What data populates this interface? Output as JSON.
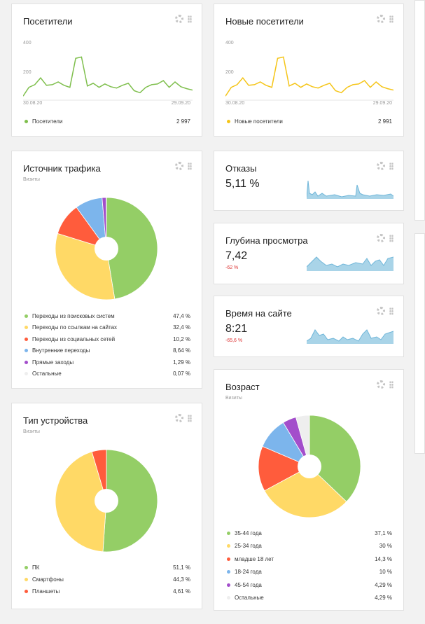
{
  "visitors": {
    "title": "Посетители",
    "y_ticks": [
      "400",
      "200"
    ],
    "date_start": "30.08.20",
    "date_end": "29.09.20",
    "legend_label": "Посетители",
    "legend_value": "2 997",
    "color": "#7fbf4d"
  },
  "new_visitors": {
    "title": "Новые посетители",
    "y_ticks": [
      "400",
      "200"
    ],
    "date_start": "30.08.20",
    "date_end": "29.09.20",
    "legend_label": "Новые посетители",
    "legend_value": "2 991",
    "color": "#f5c518"
  },
  "traffic_source": {
    "title": "Источник трафика",
    "subtitle": "Визиты",
    "items": [
      {
        "label": "Переходы из поисковых систем",
        "value": "47,4 %",
        "color": "#94ce66"
      },
      {
        "label": "Переходы по ссылкам на сайтах",
        "value": "32,4 %",
        "color": "#ffd966"
      },
      {
        "label": "Переходы из социальных сетей",
        "value": "10,2 %",
        "color": "#ff5c3c"
      },
      {
        "label": "Внутренние переходы",
        "value": "8,64 %",
        "color": "#7cb5ec"
      },
      {
        "label": "Прямые заходы",
        "value": "1,29 %",
        "color": "#a34ecb"
      },
      {
        "label": "Остальные",
        "value": "0,07 %",
        "color": "#eeeeee"
      }
    ]
  },
  "device_type": {
    "title": "Тип устройства",
    "subtitle": "Визиты",
    "items": [
      {
        "label": "ПК",
        "value": "51,1 %",
        "color": "#94ce66"
      },
      {
        "label": "Смартфоны",
        "value": "44,3 %",
        "color": "#ffd966"
      },
      {
        "label": "Планшеты",
        "value": "4,61 %",
        "color": "#ff5c3c"
      }
    ]
  },
  "bounces": {
    "title": "Отказы",
    "value": "5,11 %"
  },
  "depth": {
    "title": "Глубина просмотра",
    "value": "7,42",
    "delta": "-62 %"
  },
  "time_on_site": {
    "title": "Время на сайте",
    "value": "8:21",
    "delta": "-65,6 %"
  },
  "age": {
    "title": "Возраст",
    "subtitle": "Визиты",
    "items": [
      {
        "label": "35-44 года",
        "value": "37,1 %",
        "color": "#94ce66"
      },
      {
        "label": "25-34 года",
        "value": "30 %",
        "color": "#ffd966"
      },
      {
        "label": "младше 18 лет",
        "value": "14,3 %",
        "color": "#ff5c3c"
      },
      {
        "label": "18-24 года",
        "value": "10 %",
        "color": "#7cb5ec"
      },
      {
        "label": "45-54 года",
        "value": "4,29 %",
        "color": "#a34ecb"
      },
      {
        "label": "Остальные",
        "value": "4,29 %",
        "color": "#eeeeee"
      }
    ]
  },
  "chart_data": [
    {
      "type": "line",
      "title": "Посетители",
      "x_start": "30.08.20",
      "x_end": "29.09.20",
      "ylim": [
        0,
        400
      ],
      "series": [
        {
          "name": "Посетители",
          "values": [
            30,
            95,
            115,
            165,
            110,
            115,
            135,
            110,
            95,
            310,
            320,
            105,
            125,
            95,
            120,
            100,
            90,
            110,
            125,
            70,
            55,
            95,
            115,
            120,
            145,
            95,
            135,
            100,
            85,
            75
          ]
        }
      ]
    },
    {
      "type": "line",
      "title": "Новые посетители",
      "x_start": "30.08.20",
      "x_end": "29.09.20",
      "ylim": [
        0,
        400
      ],
      "series": [
        {
          "name": "Новые посетители",
          "values": [
            30,
            95,
            115,
            165,
            110,
            115,
            135,
            110,
            95,
            310,
            320,
            105,
            125,
            95,
            120,
            100,
            90,
            110,
            125,
            70,
            55,
            95,
            115,
            120,
            145,
            95,
            135,
            100,
            85,
            75
          ]
        }
      ]
    },
    {
      "type": "pie",
      "title": "Источник трафика",
      "categories": [
        "Переходы из поисковых систем",
        "Переходы по ссылкам на сайтах",
        "Переходы из социальных сетей",
        "Внутренние переходы",
        "Прямые заходы",
        "Остальные"
      ],
      "values": [
        47.4,
        32.4,
        10.2,
        8.64,
        1.29,
        0.07
      ]
    },
    {
      "type": "pie",
      "title": "Тип устройства",
      "categories": [
        "ПК",
        "Смартфоны",
        "Планшеты"
      ],
      "values": [
        51.1,
        44.3,
        4.61
      ]
    },
    {
      "type": "pie",
      "title": "Возраст",
      "categories": [
        "35-44 года",
        "25-34 года",
        "младше 18 лет",
        "18-24 года",
        "45-54 года",
        "Остальные"
      ],
      "values": [
        37.1,
        30,
        14.3,
        10,
        4.29,
        4.29
      ]
    }
  ]
}
